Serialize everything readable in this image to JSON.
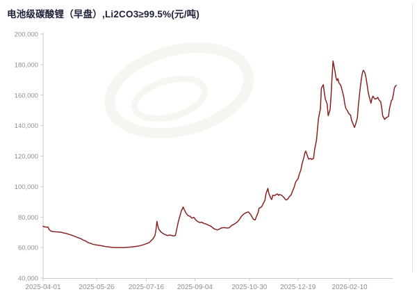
{
  "chart_data": {
    "type": "line",
    "title": "电池级碳酸锂（早盘）,Li2CO3≥99.5%(元/吨)",
    "xlabel": "",
    "ylabel": "",
    "unit": "元/吨",
    "ylim": [
      40000,
      200000
    ],
    "y_tick_step": 20000,
    "y_tick_labels": [
      "40,000",
      "60,000",
      "80,000",
      "100,000",
      "120,000",
      "140,000",
      "160,000",
      "180,000",
      "200,000"
    ],
    "x_ticks": [
      "2025-04-01",
      "2025-05-26",
      "2025-07-16",
      "2025-09-04",
      "2025-10-30",
      "2025-12-19",
      "2026-02-10"
    ],
    "grid": false,
    "legend": false,
    "colors": {
      "line": "#872220",
      "title": "#20223a",
      "axis_label": "#8f8f8f",
      "axis_line": "#c9c9c9",
      "right_border": "#e3e3e0",
      "watermark": "#f7f5ef",
      "background": "#ffffff"
    },
    "series": [
      {
        "points": [
          [
            "2025-04-01",
            74000
          ],
          [
            "2025-04-02",
            73600
          ],
          [
            "2025-04-05",
            73400
          ],
          [
            "2025-04-06",
            73500
          ],
          [
            "2025-04-07",
            72000
          ],
          [
            "2025-04-09",
            70800
          ],
          [
            "2025-04-11",
            70500
          ],
          [
            "2025-04-14",
            70300
          ],
          [
            "2025-04-17",
            70200
          ],
          [
            "2025-04-20",
            70000
          ],
          [
            "2025-04-22",
            69600
          ],
          [
            "2025-04-25",
            69200
          ],
          [
            "2025-04-28",
            68600
          ],
          [
            "2025-05-01",
            68000
          ],
          [
            "2025-05-04",
            67200
          ],
          [
            "2025-05-07",
            66500
          ],
          [
            "2025-05-10",
            65800
          ],
          [
            "2025-05-12",
            65000
          ],
          [
            "2025-05-15",
            64200
          ],
          [
            "2025-05-17",
            63300
          ],
          [
            "2025-05-20",
            62700
          ],
          [
            "2025-05-22",
            62200
          ],
          [
            "2025-05-25",
            61800
          ],
          [
            "2025-05-28",
            61500
          ],
          [
            "2025-05-31",
            61200
          ],
          [
            "2025-06-03",
            60800
          ],
          [
            "2025-06-06",
            60500
          ],
          [
            "2025-06-09",
            60300
          ],
          [
            "2025-06-11",
            60100
          ],
          [
            "2025-06-14",
            60000
          ],
          [
            "2025-06-19",
            60000
          ],
          [
            "2025-06-23",
            60000
          ],
          [
            "2025-06-27",
            60200
          ],
          [
            "2025-07-01",
            60400
          ],
          [
            "2025-07-06",
            60800
          ],
          [
            "2025-07-10",
            61300
          ],
          [
            "2025-07-14",
            62000
          ],
          [
            "2025-07-19",
            63200
          ],
          [
            "2025-07-21",
            64500
          ],
          [
            "2025-07-23",
            65800
          ],
          [
            "2025-07-25",
            68000
          ],
          [
            "2025-07-26",
            71500
          ],
          [
            "2025-07-27",
            77200
          ],
          [
            "2025-07-28",
            74000
          ],
          [
            "2025-07-29",
            72000
          ],
          [
            "2025-07-31",
            70300
          ],
          [
            "2025-08-02",
            69300
          ],
          [
            "2025-08-05",
            68300
          ],
          [
            "2025-08-07",
            67900
          ],
          [
            "2025-08-09",
            68200
          ],
          [
            "2025-08-11",
            68000
          ],
          [
            "2025-08-13",
            67600
          ],
          [
            "2025-08-15",
            68000
          ],
          [
            "2025-08-16",
            71000
          ],
          [
            "2025-08-18",
            77000
          ],
          [
            "2025-08-20",
            81500
          ],
          [
            "2025-08-21",
            84000
          ],
          [
            "2025-08-23",
            86600
          ],
          [
            "2025-08-24",
            85000
          ],
          [
            "2025-08-26",
            82500
          ],
          [
            "2025-08-28",
            81000
          ],
          [
            "2025-08-30",
            80500
          ],
          [
            "2025-09-01",
            79300
          ],
          [
            "2025-09-03",
            79800
          ],
          [
            "2025-09-05",
            78000
          ],
          [
            "2025-09-07",
            77000
          ],
          [
            "2025-09-09",
            76400
          ],
          [
            "2025-09-11",
            76600
          ],
          [
            "2025-09-13",
            75900
          ],
          [
            "2025-09-16",
            75300
          ],
          [
            "2025-09-18",
            74700
          ],
          [
            "2025-09-20",
            74200
          ],
          [
            "2025-09-22",
            73200
          ],
          [
            "2025-09-24",
            72200
          ],
          [
            "2025-09-27",
            71600
          ],
          [
            "2025-09-29",
            72000
          ],
          [
            "2025-10-01",
            72800
          ],
          [
            "2025-10-04",
            73100
          ],
          [
            "2025-10-07",
            72800
          ],
          [
            "2025-10-09",
            72900
          ],
          [
            "2025-10-12",
            74600
          ],
          [
            "2025-10-14",
            75200
          ],
          [
            "2025-10-16",
            76000
          ],
          [
            "2025-10-18",
            77000
          ],
          [
            "2025-10-20",
            78600
          ],
          [
            "2025-10-22",
            80600
          ],
          [
            "2025-10-24",
            81900
          ],
          [
            "2025-10-26",
            82600
          ],
          [
            "2025-10-27",
            83000
          ],
          [
            "2025-10-29",
            83400
          ],
          [
            "2025-10-30",
            82700
          ],
          [
            "2025-11-01",
            81000
          ],
          [
            "2025-11-02",
            79800
          ],
          [
            "2025-11-03",
            78600
          ],
          [
            "2025-11-05",
            78100
          ],
          [
            "2025-11-06",
            80000
          ],
          [
            "2025-11-08",
            83000
          ],
          [
            "2025-11-09",
            85800
          ],
          [
            "2025-11-11",
            86400
          ],
          [
            "2025-11-12",
            87200
          ],
          [
            "2025-11-13",
            88500
          ],
          [
            "2025-11-15",
            91000
          ],
          [
            "2025-11-16",
            95000
          ],
          [
            "2025-11-18",
            98800
          ],
          [
            "2025-11-19",
            95500
          ],
          [
            "2025-11-21",
            92300
          ],
          [
            "2025-11-22",
            91500
          ],
          [
            "2025-11-23",
            94300
          ],
          [
            "2025-11-25",
            94000
          ],
          [
            "2025-11-26",
            94600
          ],
          [
            "2025-11-28",
            95200
          ],
          [
            "2025-11-29",
            94200
          ],
          [
            "2025-11-30",
            94800
          ],
          [
            "2025-12-02",
            94400
          ],
          [
            "2025-12-03",
            93800
          ],
          [
            "2025-12-05",
            92500
          ],
          [
            "2025-12-06",
            91600
          ],
          [
            "2025-12-07",
            91200
          ],
          [
            "2025-12-09",
            92200
          ],
          [
            "2025-12-10",
            93400
          ],
          [
            "2025-12-12",
            94600
          ],
          [
            "2025-12-13",
            96500
          ],
          [
            "2025-12-15",
            99500
          ],
          [
            "2025-12-16",
            101800
          ],
          [
            "2025-12-17",
            103500
          ],
          [
            "2025-12-19",
            105000
          ],
          [
            "2025-12-20",
            107500
          ],
          [
            "2025-12-22",
            111000
          ],
          [
            "2025-12-23",
            114500
          ],
          [
            "2025-12-25",
            119000
          ],
          [
            "2025-12-26",
            122000
          ],
          [
            "2025-12-27",
            123300
          ],
          [
            "2025-12-29",
            119500
          ],
          [
            "2025-12-30",
            118000
          ],
          [
            "2026-01-01",
            118400
          ],
          [
            "2026-01-02",
            117800
          ],
          [
            "2026-01-04",
            118500
          ],
          [
            "2026-01-05",
            124000
          ],
          [
            "2026-01-07",
            130500
          ],
          [
            "2026-01-08",
            137500
          ],
          [
            "2026-01-09",
            144500
          ],
          [
            "2026-01-11",
            151000
          ],
          [
            "2026-01-12",
            164500
          ],
          [
            "2026-01-14",
            166800
          ],
          [
            "2026-01-15",
            162000
          ],
          [
            "2026-01-16",
            157500
          ],
          [
            "2026-01-18",
            154000
          ],
          [
            "2026-01-19",
            146500
          ],
          [
            "2026-01-21",
            150500
          ],
          [
            "2026-01-22",
            160000
          ],
          [
            "2026-01-23",
            172000
          ],
          [
            "2026-01-24",
            182300
          ],
          [
            "2026-01-26",
            175500
          ],
          [
            "2026-01-27",
            171500
          ],
          [
            "2026-01-28",
            169500
          ],
          [
            "2026-01-29",
            170800
          ],
          [
            "2026-01-30",
            168000
          ],
          [
            "2026-02-01",
            166300
          ],
          [
            "2026-02-02",
            164000
          ],
          [
            "2026-02-04",
            158800
          ],
          [
            "2026-02-05",
            154500
          ],
          [
            "2026-02-06",
            151500
          ],
          [
            "2026-02-08",
            149400
          ],
          [
            "2026-02-09",
            148000
          ],
          [
            "2026-02-11",
            146800
          ],
          [
            "2026-02-12",
            143500
          ],
          [
            "2026-02-14",
            140500
          ],
          [
            "2026-02-15",
            138800
          ],
          [
            "2026-02-16",
            140500
          ],
          [
            "2026-02-18",
            145000
          ],
          [
            "2026-02-19",
            153000
          ],
          [
            "2026-02-20",
            159000
          ],
          [
            "2026-02-21",
            165000
          ],
          [
            "2026-02-22",
            170000
          ],
          [
            "2026-02-23",
            174000
          ],
          [
            "2026-02-24",
            176200
          ],
          [
            "2026-02-25",
            175600
          ],
          [
            "2026-02-26",
            174000
          ],
          [
            "2026-02-27",
            171000
          ],
          [
            "2026-02-28",
            166900
          ],
          [
            "2026-03-01",
            162300
          ],
          [
            "2026-03-02",
            159300
          ],
          [
            "2026-03-03",
            157000
          ],
          [
            "2026-03-04",
            154700
          ],
          [
            "2026-03-05",
            157800
          ],
          [
            "2026-03-06",
            159300
          ],
          [
            "2026-03-08",
            157400
          ],
          [
            "2026-03-09",
            157600
          ],
          [
            "2026-03-10",
            157800
          ],
          [
            "2026-03-11",
            158500
          ],
          [
            "2026-03-12",
            157000
          ],
          [
            "2026-03-14",
            155500
          ],
          [
            "2026-03-15",
            151700
          ],
          [
            "2026-03-16",
            146500
          ],
          [
            "2026-03-18",
            144000
          ],
          [
            "2026-03-19",
            144800
          ],
          [
            "2026-03-20",
            145300
          ],
          [
            "2026-03-22",
            146000
          ],
          [
            "2026-03-23",
            151000
          ],
          [
            "2026-03-25",
            156500
          ],
          [
            "2026-03-26",
            157000
          ],
          [
            "2026-03-27",
            160500
          ],
          [
            "2026-03-28",
            164500
          ],
          [
            "2026-03-29",
            165800
          ],
          [
            "2026-03-30",
            166300
          ]
        ]
      }
    ]
  }
}
